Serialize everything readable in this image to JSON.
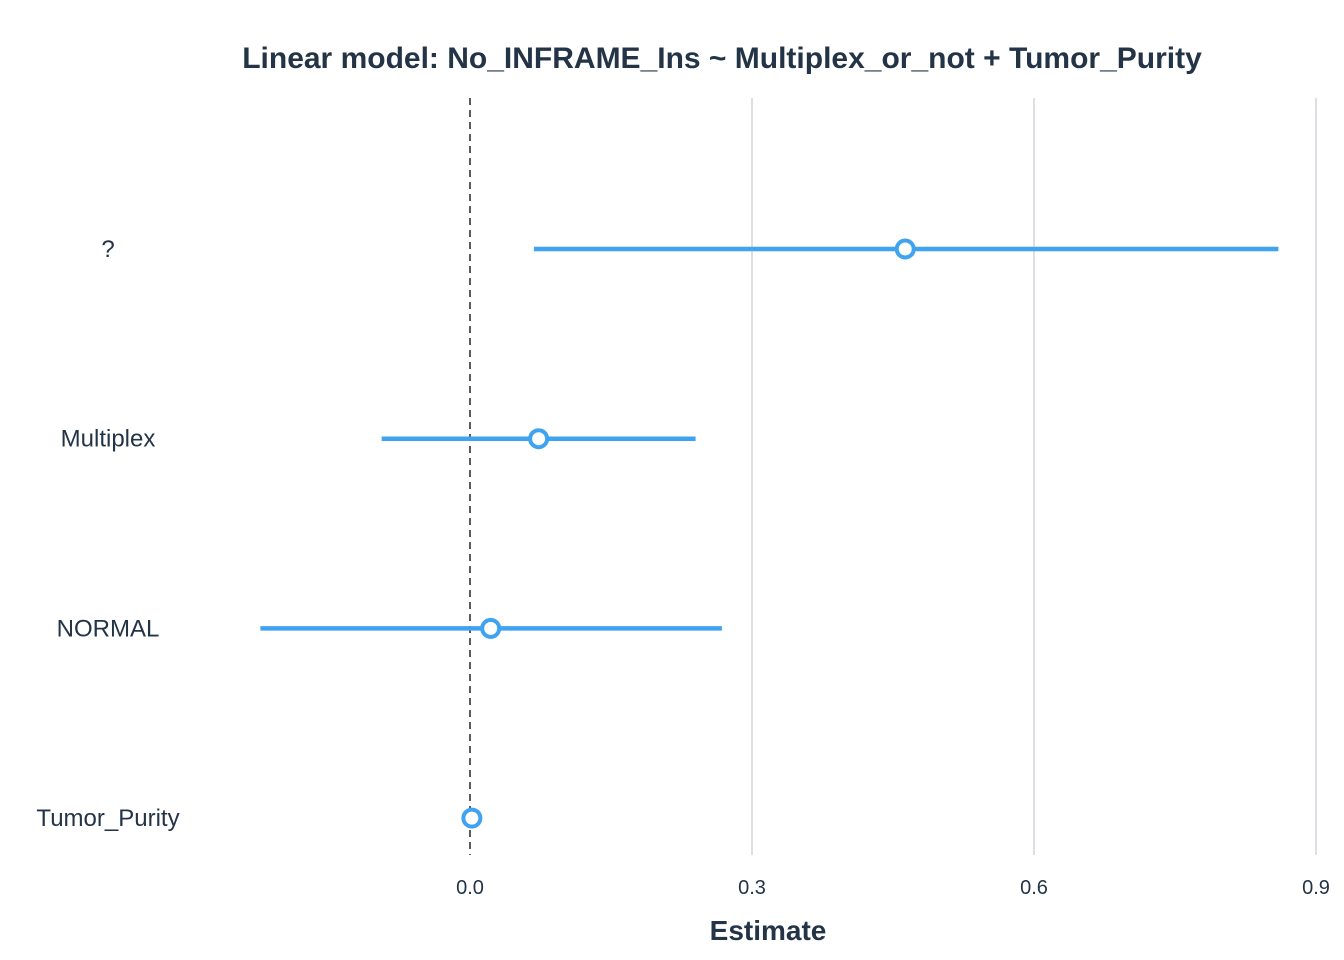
{
  "chart_data": {
    "type": "forest",
    "title": "Linear model: No_INFRAME_Ins ~ Multiplex_or_not + Tumor_Purity",
    "xlabel": "Estimate",
    "ylabel": "",
    "xlim": [
      -0.225,
      0.9
    ],
    "xticks": [
      0.0,
      0.3,
      0.6,
      0.9
    ],
    "xtick_labels": [
      "0.0",
      "0.3",
      "0.6",
      "0.9"
    ],
    "reference_line": 0,
    "grid": "vertical",
    "accent_color": "#3fa3f0",
    "terms": [
      {
        "label": "?",
        "estimate": 0.463,
        "ci_low": 0.068,
        "ci_high": 0.86
      },
      {
        "label": "Multiplex",
        "estimate": 0.073,
        "ci_low": -0.094,
        "ci_high": 0.24
      },
      {
        "label": "NORMAL",
        "estimate": 0.022,
        "ci_low": -0.223,
        "ci_high": 0.268
      },
      {
        "label": "Tumor_Purity",
        "estimate": 0.002,
        "ci_low": 0.0,
        "ci_high": 0.004
      }
    ]
  }
}
